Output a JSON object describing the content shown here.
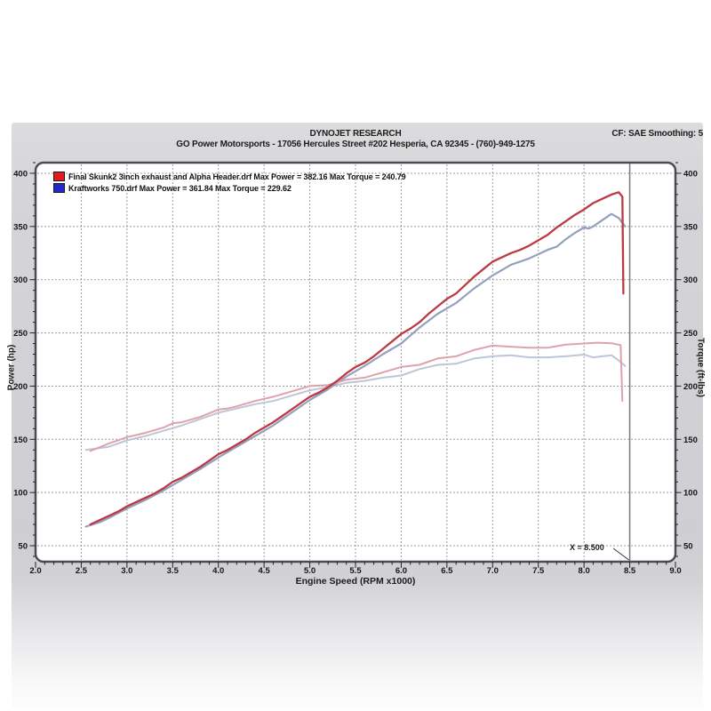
{
  "header": {
    "title": "DYNOJET RESEARCH",
    "subtitle": "GO Power Motorsports - 17056 Hercules Street #202 Hesperia, CA 92345 - (760)-949-1275",
    "correction": "CF: SAE  Smoothing: 5"
  },
  "legend": [
    {
      "color": "#e41c20",
      "label": "Final Skunk2 3inch exhaust and Alpha Header.drf Max Power = 382.16 Max Torque = 240.79"
    },
    {
      "color": "#2326cf",
      "label": "Kraftworks 750.drf Max Power = 361.84 Max Torque = 229.62"
    }
  ],
  "chart_data": {
    "type": "line",
    "title": "",
    "xlabel": "Engine Speed (RPM x1000)",
    "ylabel_left": "Power (hp)",
    "ylabel_right": "Torque (ft-lbs)",
    "xlim": [
      2.0,
      9.0
    ],
    "ylim": [
      35,
      410
    ],
    "grid": true,
    "x_tick_labels": [
      "2.0",
      "2.5",
      "3.0",
      "3.5",
      "4.0",
      "4.5",
      "5.0",
      "5.5",
      "6.0",
      "6.5",
      "7.0",
      "7.5",
      "8.0",
      "8.5",
      "9.0"
    ],
    "y_tick_labels": [
      "400",
      "350",
      "300",
      "250",
      "200",
      "150",
      "100",
      "50"
    ],
    "cursor": {
      "x": 8.5,
      "label": "X = 8.500"
    },
    "colors": {
      "power_red": "#bd3a44",
      "torque_red": "#dfa2ab",
      "power_blue": "#94a1bc",
      "torque_blue": "#bcc6d8",
      "grid": "#9b9b9b",
      "frame": "#4c4c52",
      "cursor": "#7a7a7a"
    },
    "series": [
      {
        "name": "kraftworks-750-torque",
        "unit": "ft-lbs",
        "color_key": "torque_blue",
        "width": 2,
        "points": [
          [
            2.55,
            140
          ],
          [
            2.8,
            143
          ],
          [
            3.0,
            149
          ],
          [
            3.2,
            153
          ],
          [
            3.4,
            158
          ],
          [
            3.6,
            163
          ],
          [
            3.8,
            169
          ],
          [
            4.0,
            175
          ],
          [
            4.2,
            179
          ],
          [
            4.4,
            183
          ],
          [
            4.6,
            186
          ],
          [
            4.8,
            191
          ],
          [
            5.0,
            196
          ],
          [
            5.2,
            199
          ],
          [
            5.4,
            203
          ],
          [
            5.6,
            205
          ],
          [
            5.8,
            208
          ],
          [
            6.0,
            210
          ],
          [
            6.2,
            216
          ],
          [
            6.4,
            220
          ],
          [
            6.6,
            221
          ],
          [
            6.8,
            226
          ],
          [
            7.0,
            228
          ],
          [
            7.2,
            229
          ],
          [
            7.4,
            227
          ],
          [
            7.6,
            227
          ],
          [
            7.8,
            228
          ],
          [
            8.0,
            229.62
          ],
          [
            8.1,
            227
          ],
          [
            8.2,
            228
          ],
          [
            8.3,
            229
          ],
          [
            8.38,
            224
          ],
          [
            8.45,
            219
          ]
        ]
      },
      {
        "name": "kraftworks-750-power",
        "unit": "hp",
        "color_key": "power_blue",
        "width": 2.2,
        "points": [
          [
            2.55,
            68
          ],
          [
            2.7,
            72
          ],
          [
            2.8,
            76
          ],
          [
            3.0,
            85
          ],
          [
            3.2,
            93
          ],
          [
            3.4,
            102
          ],
          [
            3.6,
            112
          ],
          [
            3.8,
            122
          ],
          [
            4.0,
            133
          ],
          [
            4.2,
            143
          ],
          [
            4.4,
            153
          ],
          [
            4.6,
            163
          ],
          [
            4.8,
            175
          ],
          [
            5.0,
            187
          ],
          [
            5.2,
            197
          ],
          [
            5.4,
            209
          ],
          [
            5.6,
            219
          ],
          [
            5.8,
            230
          ],
          [
            6.0,
            240
          ],
          [
            6.2,
            255
          ],
          [
            6.4,
            268
          ],
          [
            6.6,
            278
          ],
          [
            6.8,
            292
          ],
          [
            7.0,
            304
          ],
          [
            7.2,
            314
          ],
          [
            7.4,
            320
          ],
          [
            7.6,
            328
          ],
          [
            7.7,
            331
          ],
          [
            7.8,
            338
          ],
          [
            7.9,
            344
          ],
          [
            8.0,
            349
          ],
          [
            8.05,
            348
          ],
          [
            8.1,
            350
          ],
          [
            8.2,
            356
          ],
          [
            8.3,
            361.84
          ],
          [
            8.38,
            358
          ],
          [
            8.45,
            350
          ]
        ]
      },
      {
        "name": "skunk2-alpha-torque",
        "unit": "ft-lbs",
        "color_key": "torque_red",
        "width": 2,
        "points": [
          [
            2.6,
            139
          ],
          [
            2.8,
            146
          ],
          [
            3.0,
            152
          ],
          [
            3.2,
            156
          ],
          [
            3.4,
            161
          ],
          [
            3.5,
            165
          ],
          [
            3.6,
            166
          ],
          [
            3.8,
            171
          ],
          [
            4.0,
            178
          ],
          [
            4.1,
            179
          ],
          [
            4.2,
            181
          ],
          [
            4.4,
            186
          ],
          [
            4.6,
            190
          ],
          [
            4.8,
            195
          ],
          [
            5.0,
            200
          ],
          [
            5.2,
            201
          ],
          [
            5.4,
            206
          ],
          [
            5.6,
            208
          ],
          [
            5.8,
            213
          ],
          [
            6.0,
            218
          ],
          [
            6.2,
            220
          ],
          [
            6.4,
            226
          ],
          [
            6.6,
            228
          ],
          [
            6.8,
            234
          ],
          [
            7.0,
            238
          ],
          [
            7.2,
            237
          ],
          [
            7.4,
            236
          ],
          [
            7.6,
            236
          ],
          [
            7.8,
            239
          ],
          [
            8.0,
            240
          ],
          [
            8.15,
            240.79
          ],
          [
            8.3,
            240.3
          ],
          [
            8.4,
            238.5
          ],
          [
            8.42,
            186
          ]
        ]
      },
      {
        "name": "skunk2-alpha-power",
        "unit": "hp",
        "color_key": "power_red",
        "width": 2.3,
        "points": [
          [
            2.6,
            70
          ],
          [
            2.7,
            74
          ],
          [
            2.8,
            78
          ],
          [
            2.9,
            82
          ],
          [
            3.0,
            87
          ],
          [
            3.1,
            91
          ],
          [
            3.2,
            95
          ],
          [
            3.3,
            99
          ],
          [
            3.4,
            104
          ],
          [
            3.5,
            110
          ],
          [
            3.6,
            114
          ],
          [
            3.7,
            119
          ],
          [
            3.8,
            124
          ],
          [
            3.9,
            130
          ],
          [
            4.0,
            136
          ],
          [
            4.1,
            140
          ],
          [
            4.2,
            145
          ],
          [
            4.3,
            150
          ],
          [
            4.4,
            156
          ],
          [
            4.5,
            161
          ],
          [
            4.6,
            166
          ],
          [
            4.7,
            172
          ],
          [
            4.8,
            178
          ],
          [
            4.9,
            184
          ],
          [
            5.0,
            190
          ],
          [
            5.1,
            194
          ],
          [
            5.2,
            199
          ],
          [
            5.3,
            205
          ],
          [
            5.4,
            212
          ],
          [
            5.5,
            218
          ],
          [
            5.6,
            222
          ],
          [
            5.7,
            228
          ],
          [
            5.8,
            235
          ],
          [
            5.9,
            242
          ],
          [
            6.0,
            249
          ],
          [
            6.1,
            254
          ],
          [
            6.2,
            260
          ],
          [
            6.3,
            268
          ],
          [
            6.4,
            275
          ],
          [
            6.5,
            282
          ],
          [
            6.6,
            287
          ],
          [
            6.7,
            295
          ],
          [
            6.8,
            303
          ],
          [
            6.9,
            310
          ],
          [
            7.0,
            317
          ],
          [
            7.1,
            321
          ],
          [
            7.2,
            325
          ],
          [
            7.3,
            328
          ],
          [
            7.4,
            332
          ],
          [
            7.5,
            337
          ],
          [
            7.6,
            342
          ],
          [
            7.7,
            349
          ],
          [
            7.8,
            355
          ],
          [
            7.9,
            361
          ],
          [
            8.0,
            366
          ],
          [
            8.1,
            372
          ],
          [
            8.2,
            376
          ],
          [
            8.3,
            380
          ],
          [
            8.38,
            382.16
          ],
          [
            8.42,
            378
          ],
          [
            8.43,
            287
          ]
        ]
      }
    ]
  }
}
